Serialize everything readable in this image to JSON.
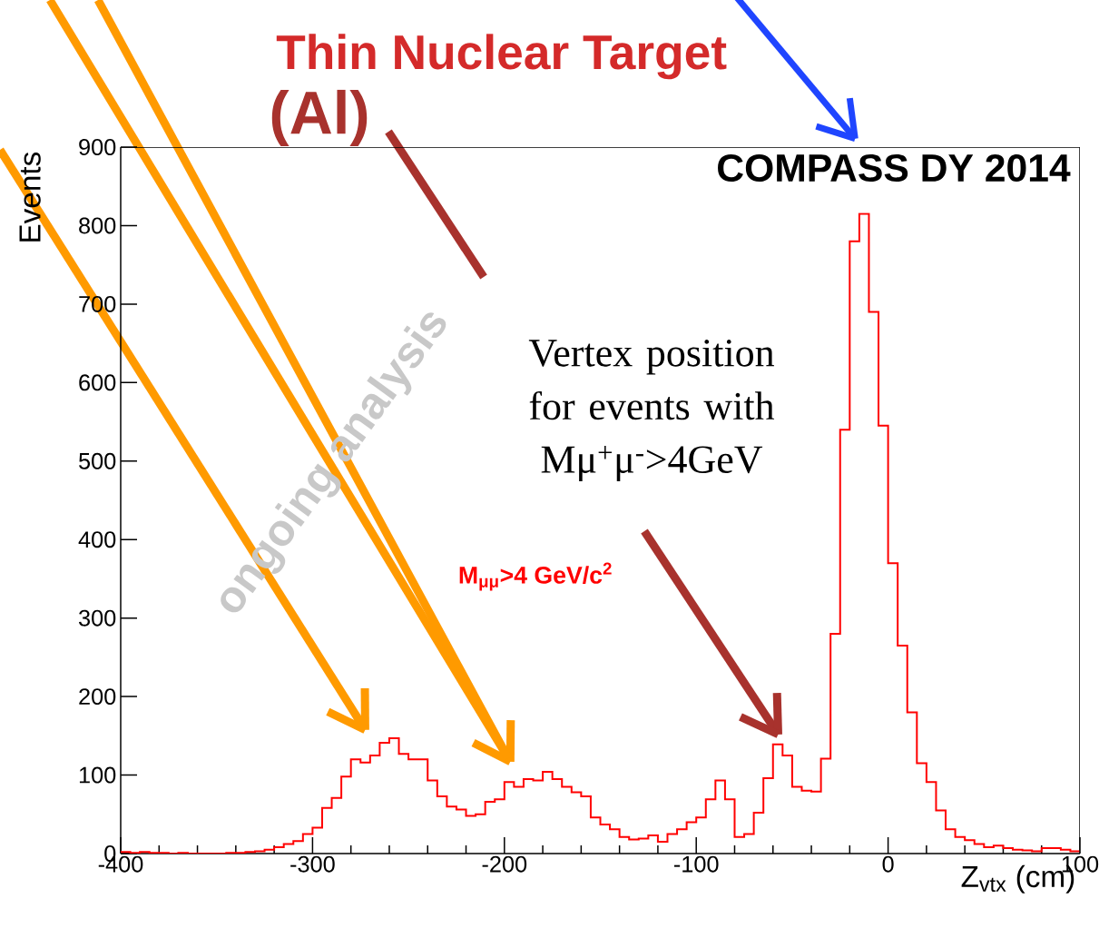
{
  "chart_data": {
    "type": "histogram",
    "title": "Thin Nuclear Target",
    "xlabel": "Z$_{vtx}$ (cm)",
    "ylabel": "Events",
    "annotations": [
      "(Al)",
      "COMPASS DY 2014",
      "Vertex position for events with Mμ$^{+}$μ$^{-}$>4GeV",
      "M$_{μμ}$>4 GeV/c$^{2}$",
      "ongoing analysis"
    ],
    "color": "#ff0000",
    "xlim": [
      -400,
      100
    ],
    "ylim": [
      0,
      900
    ],
    "xticks": [
      -400,
      -300,
      -200,
      -100,
      0,
      100
    ],
    "yticks": [
      0,
      100,
      200,
      300,
      400,
      500,
      600,
      700,
      800,
      900
    ],
    "bins": [
      -400,
      -395,
      -390,
      -385,
      -380,
      -375,
      -370,
      -365,
      -360,
      -355,
      -350,
      -345,
      -340,
      -335,
      -330,
      -325,
      -320,
      -315,
      -310,
      -305,
      -300,
      -295,
      -290,
      -285,
      -280,
      -275,
      -270,
      -265,
      -260,
      -255,
      -250,
      -245,
      -240,
      -235,
      -230,
      -225,
      -220,
      -215,
      -210,
      -205,
      -200,
      -195,
      -190,
      -185,
      -180,
      -175,
      -170,
      -165,
      -160,
      -155,
      -150,
      -145,
      -140,
      -135,
      -130,
      -125,
      -120,
      -115,
      -110,
      -105,
      -100,
      -95,
      -90,
      -85,
      -80,
      -75,
      -70,
      -65,
      -60,
      -55,
      -50,
      -45,
      -40,
      -35,
      -30,
      -25,
      -20,
      -15,
      -10,
      -5,
      0,
      5,
      10,
      15,
      20,
      25,
      30,
      35,
      40,
      45,
      50,
      55,
      60,
      65,
      70,
      75,
      80,
      85,
      90,
      95,
      100
    ],
    "values": [
      2,
      1,
      2,
      1,
      1,
      0,
      1,
      0,
      0,
      0,
      0,
      1,
      1,
      2,
      3,
      5,
      8,
      12,
      16,
      25,
      33,
      58,
      71,
      98,
      120,
      116,
      125,
      141,
      147,
      127,
      120,
      120,
      93,
      73,
      60,
      56,
      48,
      50,
      66,
      69,
      91,
      85,
      95,
      93,
      104,
      95,
      85,
      78,
      73,
      46,
      37,
      31,
      21,
      18,
      19,
      23,
      15,
      25,
      31,
      40,
      46,
      69,
      93,
      69,
      21,
      25,
      52,
      96,
      139,
      125,
      85,
      80,
      79,
      121,
      280,
      540,
      780,
      815,
      690,
      545,
      370,
      265,
      180,
      115,
      91,
      55,
      31,
      21,
      17,
      12,
      8,
      10,
      7,
      5,
      4,
      3,
      7,
      7,
      5,
      3
    ]
  }
}
